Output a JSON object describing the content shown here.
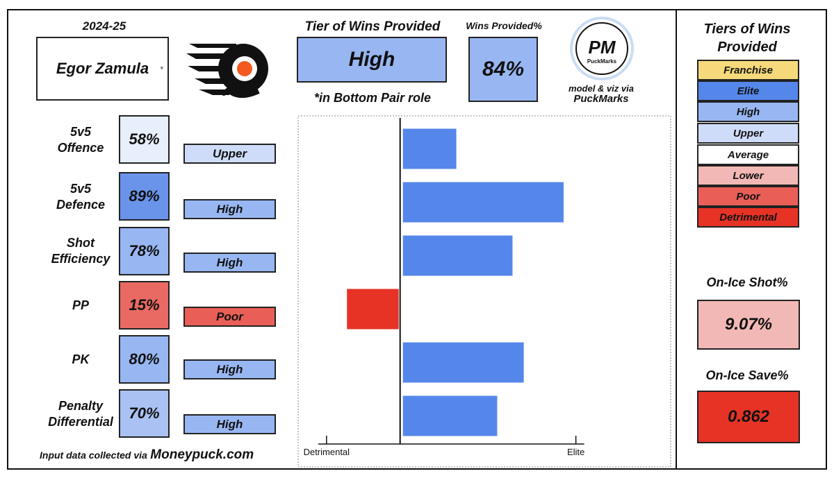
{
  "season": "2024-25",
  "player": {
    "name": "Egor Zamula",
    "dropdown_icon": "caret-down-icon"
  },
  "team_logo": "flyers-logo",
  "tier_of_wins": {
    "title": "Tier of Wins Provided",
    "value": "High",
    "note": "*in Bottom Pair role"
  },
  "wins_provided": {
    "title": "Wins Provided%",
    "value": "84%"
  },
  "brand": {
    "logo_text": "PM",
    "logo_subtext": "PuckMarks",
    "credit_line1": "model & viz via",
    "credit_line2": "PuckMarks"
  },
  "colors": {
    "franchise": "#f6d97a",
    "elite": "#5587ea",
    "high": "#98b7f2",
    "upper": "#cfdcf9",
    "average": "#ffffff",
    "lower": "#f2b8b5",
    "poor": "#e95f58",
    "detrimental": "#e63326",
    "pct_58": "#e7eefc",
    "pct_89": "#6a93ea",
    "pct_78": "#98b7f2",
    "pct_15": "#e96a63",
    "pct_80": "#98b7f2",
    "pct_70": "#a9c2f3"
  },
  "metrics": [
    {
      "label_line1": "5v5",
      "label_line2": "Offence",
      "pct": "58%",
      "tier": "Upper"
    },
    {
      "label_line1": "5v5",
      "label_line2": "Defence",
      "pct": "89%",
      "tier": "High"
    },
    {
      "label_line1": "Shot",
      "label_line2": "Efficiency",
      "pct": "78%",
      "tier": "High"
    },
    {
      "label_line1": "PP",
      "label_line2": "",
      "pct": "15%",
      "tier": "Poor"
    },
    {
      "label_line1": "PK",
      "label_line2": "",
      "pct": "80%",
      "tier": "High"
    },
    {
      "label_line1": "Penalty",
      "label_line2": "Differential",
      "pct": "70%",
      "tier": "High"
    }
  ],
  "footer": {
    "prefix": "Input data collected via",
    "source": "Moneypuck.com"
  },
  "legend": {
    "title_line1": "Tiers of Wins",
    "title_line2": "Provided",
    "items": [
      "Franchise",
      "Elite",
      "High",
      "Upper",
      "Average",
      "Lower",
      "Poor",
      "Detrimental"
    ]
  },
  "on_ice_shot": {
    "title": "On-Ice Shot%",
    "value": "9.07%"
  },
  "on_ice_save": {
    "title": "On-Ice Save%",
    "value": "0.862"
  },
  "chart_data": {
    "type": "bar",
    "orientation": "horizontal",
    "categories": [
      "5v5 Offence",
      "5v5 Defence",
      "Shot Efficiency",
      "PP",
      "PK",
      "Penalty Differential"
    ],
    "values": [
      0.55,
      1.6,
      1.1,
      -0.52,
      1.21,
      0.95
    ],
    "bar_colors": [
      "#5587ea",
      "#5587ea",
      "#5587ea",
      "#e63326",
      "#5587ea",
      "#5587ea"
    ],
    "xlim": [
      -0.95,
      2.6
    ],
    "zero_line": 0,
    "ticks": [
      {
        "value": -0.72,
        "label": "Detrimental"
      },
      {
        "value": 1.72,
        "label": "Elite"
      }
    ],
    "grid": false,
    "legend": "none"
  }
}
